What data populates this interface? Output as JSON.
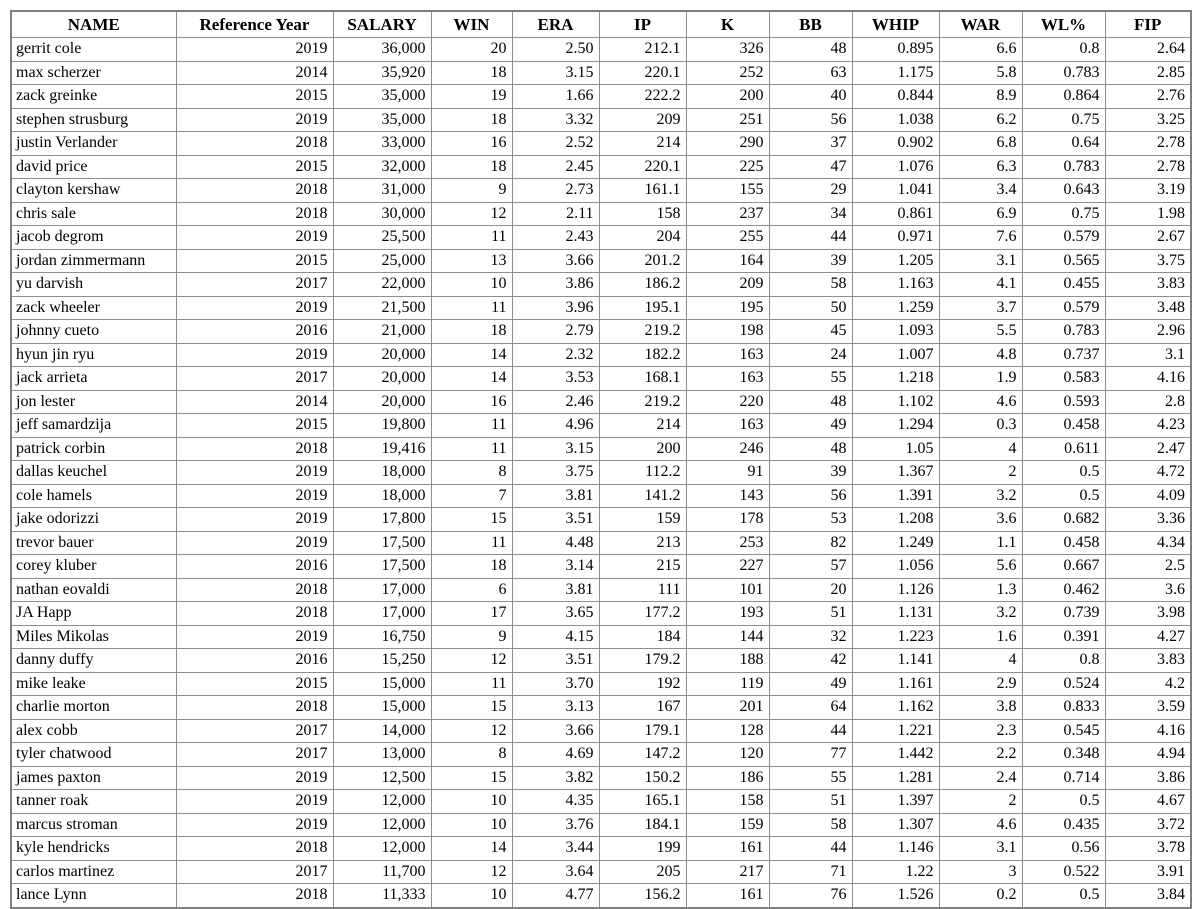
{
  "table": {
    "grid_color": "#8f8f8f",
    "outer_border_color": "#7f7f7f",
    "text_color": "#000000",
    "background_color": "#ffffff",
    "columns": [
      {
        "key": "name",
        "label": "NAME",
        "align": "left"
      },
      {
        "key": "reference-year",
        "label": "Reference Year",
        "align": "right"
      },
      {
        "key": "salary",
        "label": "SALARY",
        "align": "right"
      },
      {
        "key": "win",
        "label": "WIN",
        "align": "right"
      },
      {
        "key": "era",
        "label": "ERA",
        "align": "right"
      },
      {
        "key": "ip",
        "label": "IP",
        "align": "right"
      },
      {
        "key": "k",
        "label": "K",
        "align": "right"
      },
      {
        "key": "bb",
        "label": "BB",
        "align": "right"
      },
      {
        "key": "whip",
        "label": "WHIP",
        "align": "right"
      },
      {
        "key": "war",
        "label": "WAR",
        "align": "right"
      },
      {
        "key": "wl-pct",
        "label": "WL%",
        "align": "right"
      },
      {
        "key": "fip",
        "label": "FIP",
        "align": "right"
      }
    ],
    "rows": [
      [
        "gerrit cole",
        "2019",
        "36,000",
        "20",
        "2.50",
        "212.1",
        "326",
        "48",
        "0.895",
        "6.6",
        "0.8",
        "2.64"
      ],
      [
        "max scherzer",
        "2014",
        "35,920",
        "18",
        "3.15",
        "220.1",
        "252",
        "63",
        "1.175",
        "5.8",
        "0.783",
        "2.85"
      ],
      [
        "zack greinke",
        "2015",
        "35,000",
        "19",
        "1.66",
        "222.2",
        "200",
        "40",
        "0.844",
        "8.9",
        "0.864",
        "2.76"
      ],
      [
        "stephen strusburg",
        "2019",
        "35,000",
        "18",
        "3.32",
        "209",
        "251",
        "56",
        "1.038",
        "6.2",
        "0.75",
        "3.25"
      ],
      [
        "justin Verlander",
        "2018",
        "33,000",
        "16",
        "2.52",
        "214",
        "290",
        "37",
        "0.902",
        "6.8",
        "0.64",
        "2.78"
      ],
      [
        "david price",
        "2015",
        "32,000",
        "18",
        "2.45",
        "220.1",
        "225",
        "47",
        "1.076",
        "6.3",
        "0.783",
        "2.78"
      ],
      [
        "clayton kershaw",
        "2018",
        "31,000",
        "9",
        "2.73",
        "161.1",
        "155",
        "29",
        "1.041",
        "3.4",
        "0.643",
        "3.19"
      ],
      [
        "chris sale",
        "2018",
        "30,000",
        "12",
        "2.11",
        "158",
        "237",
        "34",
        "0.861",
        "6.9",
        "0.75",
        "1.98"
      ],
      [
        "jacob degrom",
        "2019",
        "25,500",
        "11",
        "2.43",
        "204",
        "255",
        "44",
        "0.971",
        "7.6",
        "0.579",
        "2.67"
      ],
      [
        "jordan zimmermann",
        "2015",
        "25,000",
        "13",
        "3.66",
        "201.2",
        "164",
        "39",
        "1.205",
        "3.1",
        "0.565",
        "3.75"
      ],
      [
        "yu darvish",
        "2017",
        "22,000",
        "10",
        "3.86",
        "186.2",
        "209",
        "58",
        "1.163",
        "4.1",
        "0.455",
        "3.83"
      ],
      [
        "zack wheeler",
        "2019",
        "21,500",
        "11",
        "3.96",
        "195.1",
        "195",
        "50",
        "1.259",
        "3.7",
        "0.579",
        "3.48"
      ],
      [
        "johnny cueto",
        "2016",
        "21,000",
        "18",
        "2.79",
        "219.2",
        "198",
        "45",
        "1.093",
        "5.5",
        "0.783",
        "2.96"
      ],
      [
        "hyun jin ryu",
        "2019",
        "20,000",
        "14",
        "2.32",
        "182.2",
        "163",
        "24",
        "1.007",
        "4.8",
        "0.737",
        "3.1"
      ],
      [
        "jack arrieta",
        "2017",
        "20,000",
        "14",
        "3.53",
        "168.1",
        "163",
        "55",
        "1.218",
        "1.9",
        "0.583",
        "4.16"
      ],
      [
        "jon lester",
        "2014",
        "20,000",
        "16",
        "2.46",
        "219.2",
        "220",
        "48",
        "1.102",
        "4.6",
        "0.593",
        "2.8"
      ],
      [
        "jeff samardzija",
        "2015",
        "19,800",
        "11",
        "4.96",
        "214",
        "163",
        "49",
        "1.294",
        "0.3",
        "0.458",
        "4.23"
      ],
      [
        "patrick corbin",
        "2018",
        "19,416",
        "11",
        "3.15",
        "200",
        "246",
        "48",
        "1.05",
        "4",
        "0.611",
        "2.47"
      ],
      [
        "dallas keuchel",
        "2019",
        "18,000",
        "8",
        "3.75",
        "112.2",
        "91",
        "39",
        "1.367",
        "2",
        "0.5",
        "4.72"
      ],
      [
        "cole hamels",
        "2019",
        "18,000",
        "7",
        "3.81",
        "141.2",
        "143",
        "56",
        "1.391",
        "3.2",
        "0.5",
        "4.09"
      ],
      [
        "jake odorizzi",
        "2019",
        "17,800",
        "15",
        "3.51",
        "159",
        "178",
        "53",
        "1.208",
        "3.6",
        "0.682",
        "3.36"
      ],
      [
        "trevor bauer",
        "2019",
        "17,500",
        "11",
        "4.48",
        "213",
        "253",
        "82",
        "1.249",
        "1.1",
        "0.458",
        "4.34"
      ],
      [
        "corey kluber",
        "2016",
        "17,500",
        "18",
        "3.14",
        "215",
        "227",
        "57",
        "1.056",
        "5.6",
        "0.667",
        "2.5"
      ],
      [
        "nathan eovaldi",
        "2018",
        "17,000",
        "6",
        "3.81",
        "111",
        "101",
        "20",
        "1.126",
        "1.3",
        "0.462",
        "3.6"
      ],
      [
        "JA Happ",
        "2018",
        "17,000",
        "17",
        "3.65",
        "177.2",
        "193",
        "51",
        "1.131",
        "3.2",
        "0.739",
        "3.98"
      ],
      [
        "Miles Mikolas",
        "2019",
        "16,750",
        "9",
        "4.15",
        "184",
        "144",
        "32",
        "1.223",
        "1.6",
        "0.391",
        "4.27"
      ],
      [
        "danny duffy",
        "2016",
        "15,250",
        "12",
        "3.51",
        "179.2",
        "188",
        "42",
        "1.141",
        "4",
        "0.8",
        "3.83"
      ],
      [
        "mike leake",
        "2015",
        "15,000",
        "11",
        "3.70",
        "192",
        "119",
        "49",
        "1.161",
        "2.9",
        "0.524",
        "4.2"
      ],
      [
        "charlie morton",
        "2018",
        "15,000",
        "15",
        "3.13",
        "167",
        "201",
        "64",
        "1.162",
        "3.8",
        "0.833",
        "3.59"
      ],
      [
        "alex cobb",
        "2017",
        "14,000",
        "12",
        "3.66",
        "179.1",
        "128",
        "44",
        "1.221",
        "2.3",
        "0.545",
        "4.16"
      ],
      [
        "tyler chatwood",
        "2017",
        "13,000",
        "8",
        "4.69",
        "147.2",
        "120",
        "77",
        "1.442",
        "2.2",
        "0.348",
        "4.94"
      ],
      [
        "james paxton",
        "2019",
        "12,500",
        "15",
        "3.82",
        "150.2",
        "186",
        "55",
        "1.281",
        "2.4",
        "0.714",
        "3.86"
      ],
      [
        "tanner roak",
        "2019",
        "12,000",
        "10",
        "4.35",
        "165.1",
        "158",
        "51",
        "1.397",
        "2",
        "0.5",
        "4.67"
      ],
      [
        "marcus stroman",
        "2019",
        "12,000",
        "10",
        "3.76",
        "184.1",
        "159",
        "58",
        "1.307",
        "4.6",
        "0.435",
        "3.72"
      ],
      [
        "kyle hendricks",
        "2018",
        "12,000",
        "14",
        "3.44",
        "199",
        "161",
        "44",
        "1.146",
        "3.1",
        "0.56",
        "3.78"
      ],
      [
        "carlos martinez",
        "2017",
        "11,700",
        "12",
        "3.64",
        "205",
        "217",
        "71",
        "1.22",
        "3",
        "0.522",
        "3.91"
      ],
      [
        "lance Lynn",
        "2018",
        "11,333",
        "10",
        "4.77",
        "156.2",
        "161",
        "76",
        "1.526",
        "0.2",
        "0.5",
        "3.84"
      ]
    ]
  }
}
